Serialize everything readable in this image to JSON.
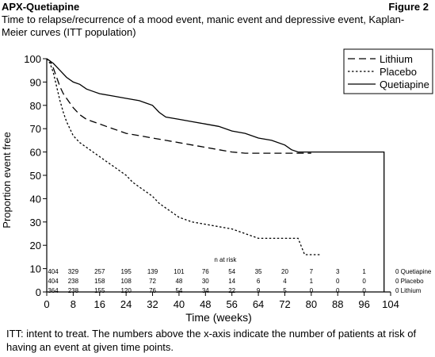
{
  "header": {
    "brand": "APX-Quetiapine",
    "figure_label": "Figure 2"
  },
  "footnote": "ITT: intent to treat. The numbers above the x-axis indicate the number of patients at risk of having an event at given time points.",
  "chart_data": {
    "type": "line",
    "title": "Time to relapse/recurrence of a mood event, manic event and depressive event, Kaplan-Meier curves (ITT population)",
    "xlabel": "Time (weeks)",
    "ylabel": "Proportion event free",
    "xlim": [
      0,
      104
    ],
    "ylim": [
      0,
      100
    ],
    "x_ticks": [
      0,
      8,
      16,
      24,
      32,
      40,
      48,
      56,
      64,
      72,
      80,
      88,
      96,
      104
    ],
    "y_ticks": [
      0,
      10,
      20,
      30,
      40,
      50,
      60,
      70,
      80,
      90,
      100
    ],
    "legend_position": "top-right",
    "series": [
      {
        "name": "Lithium",
        "line_style": "long-dash",
        "points": [
          [
            0,
            100
          ],
          [
            1,
            99
          ],
          [
            2,
            96
          ],
          [
            3,
            92
          ],
          [
            4,
            88
          ],
          [
            5,
            85
          ],
          [
            6,
            83
          ],
          [
            7,
            81
          ],
          [
            8,
            79
          ],
          [
            10,
            76
          ],
          [
            12,
            74
          ],
          [
            14,
            73
          ],
          [
            16,
            72
          ],
          [
            18,
            71
          ],
          [
            20,
            70
          ],
          [
            24,
            68
          ],
          [
            28,
            67
          ],
          [
            32,
            66
          ],
          [
            36,
            65
          ],
          [
            40,
            64
          ],
          [
            44,
            63
          ],
          [
            48,
            62
          ],
          [
            52,
            61
          ],
          [
            56,
            60
          ],
          [
            60,
            59.5
          ],
          [
            64,
            59.5
          ],
          [
            68,
            59.5
          ],
          [
            72,
            59.5
          ],
          [
            76,
            59.5
          ],
          [
            80,
            59.5
          ]
        ]
      },
      {
        "name": "Placebo",
        "line_style": "dotted",
        "points": [
          [
            0,
            100
          ],
          [
            1,
            98
          ],
          [
            2,
            94
          ],
          [
            3,
            88
          ],
          [
            4,
            82
          ],
          [
            5,
            77
          ],
          [
            6,
            73
          ],
          [
            7,
            70
          ],
          [
            8,
            67
          ],
          [
            10,
            64
          ],
          [
            12,
            62
          ],
          [
            14,
            60
          ],
          [
            16,
            58
          ],
          [
            18,
            56
          ],
          [
            20,
            54
          ],
          [
            22,
            52
          ],
          [
            24,
            50
          ],
          [
            26,
            47
          ],
          [
            28,
            45
          ],
          [
            30,
            43
          ],
          [
            32,
            41
          ],
          [
            34,
            38
          ],
          [
            36,
            36
          ],
          [
            38,
            34
          ],
          [
            40,
            32
          ],
          [
            42,
            31
          ],
          [
            44,
            30
          ],
          [
            48,
            29
          ],
          [
            52,
            28
          ],
          [
            56,
            27
          ],
          [
            60,
            25
          ],
          [
            64,
            23
          ],
          [
            68,
            23
          ],
          [
            72,
            23
          ],
          [
            76,
            23
          ],
          [
            78,
            16
          ],
          [
            80,
            16
          ],
          [
            83,
            16
          ]
        ]
      },
      {
        "name": "Quetiapine",
        "line_style": "solid",
        "points": [
          [
            0,
            100
          ],
          [
            2,
            98
          ],
          [
            4,
            95
          ],
          [
            6,
            92
          ],
          [
            8,
            90
          ],
          [
            10,
            89
          ],
          [
            12,
            87
          ],
          [
            14,
            86
          ],
          [
            16,
            85
          ],
          [
            20,
            84
          ],
          [
            24,
            83
          ],
          [
            28,
            82
          ],
          [
            30,
            81
          ],
          [
            32,
            80
          ],
          [
            34,
            77
          ],
          [
            36,
            75
          ],
          [
            40,
            74
          ],
          [
            44,
            73
          ],
          [
            48,
            72
          ],
          [
            52,
            71
          ],
          [
            56,
            69
          ],
          [
            60,
            68
          ],
          [
            64,
            66
          ],
          [
            68,
            65
          ],
          [
            72,
            63
          ],
          [
            74,
            61
          ],
          [
            76,
            60
          ],
          [
            80,
            60
          ],
          [
            88,
            60
          ],
          [
            96,
            60
          ],
          [
            102,
            60
          ],
          [
            102,
            0
          ]
        ]
      }
    ],
    "at_risk": {
      "label": "n at risk",
      "times": [
        0,
        8,
        16,
        24,
        32,
        40,
        48,
        56,
        64,
        72,
        80,
        88,
        96
      ],
      "rows": [
        {
          "label": "0 Quetiapine",
          "values": [
            "404",
            "329",
            "257",
            "195",
            "139",
            "101",
            "76",
            "54",
            "35",
            "20",
            "7",
            "3",
            "1"
          ]
        },
        {
          "label": "0 Placebo",
          "values": [
            "404",
            "238",
            "158",
            "108",
            "72",
            "48",
            "30",
            "14",
            "6",
            "4",
            "1",
            "0",
            "0"
          ]
        },
        {
          "label": "0 Lithium",
          "values": [
            "364",
            "238",
            "155",
            "120",
            "76",
            "54",
            "34",
            "22",
            "9",
            "5",
            "0",
            "0",
            "0"
          ]
        }
      ]
    }
  }
}
